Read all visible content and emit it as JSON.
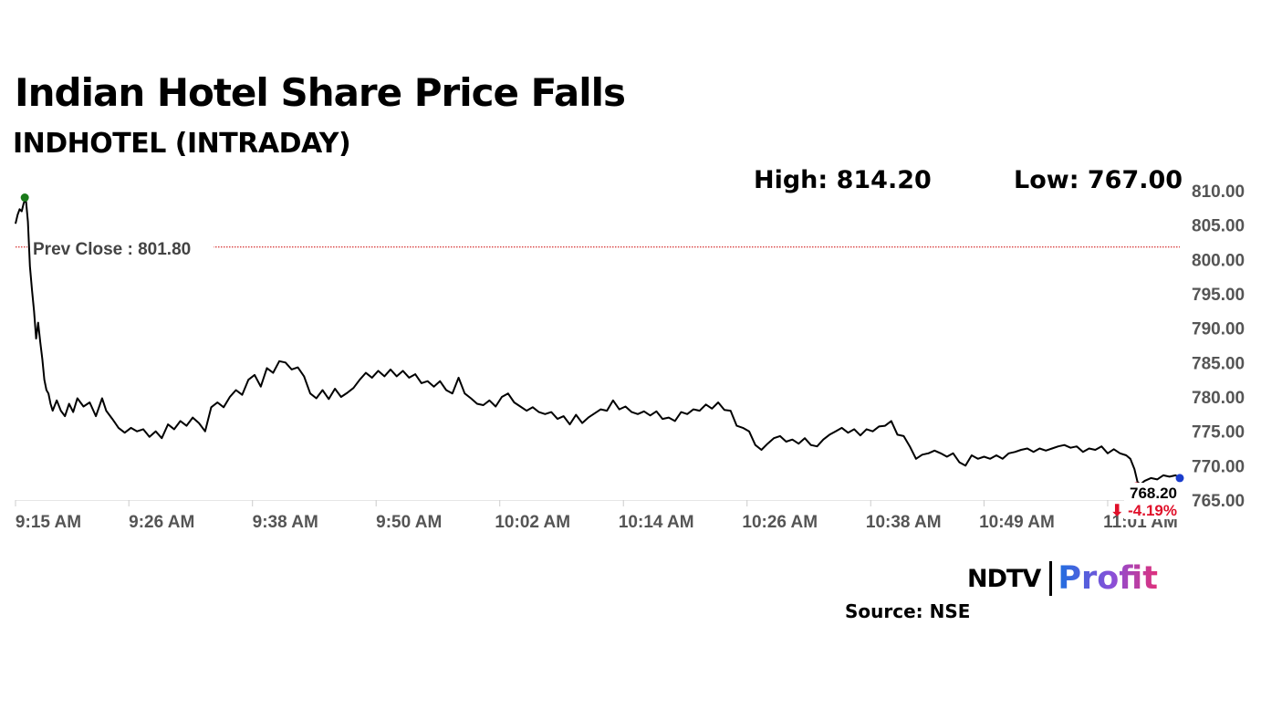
{
  "header": {
    "title": "Indian Hotel Share Price Falls",
    "subtitle": "INDHOTEL (INTRADAY)",
    "high_label": "High: 814.20",
    "low_label": "Low: 767.00"
  },
  "footer": {
    "logo_ndtv": "NDTV",
    "logo_profit": "Profit",
    "source": "Source: NSE"
  },
  "colors": {
    "line": "#000000",
    "prev_close_line": "#cc0000",
    "high_marker": "#1a7a1a",
    "low_marker": "#e0102a",
    "last_marker": "#1a3ccc",
    "change_text": "#e0102a",
    "axis_text": "#555555"
  },
  "chart_data": {
    "type": "line",
    "title": "Indian Hotel Share Price Falls",
    "subtitle": "INDHOTEL (INTRADAY)",
    "xlabel": "",
    "ylabel": "",
    "ylim": [
      765,
      812
    ],
    "xlim_minutes": [
      0,
      113
    ],
    "yticks": [
      "810.00",
      "805.00",
      "800.00",
      "795.00",
      "790.00",
      "785.00",
      "780.00",
      "775.00",
      "770.00",
      "765.00"
    ],
    "ytick_values": [
      810,
      805,
      800,
      795,
      790,
      785,
      780,
      775,
      770,
      765
    ],
    "xticks": [
      "9:15 AM",
      "9:26 AM",
      "9:38 AM",
      "9:50 AM",
      "10:02 AM",
      "10:14 AM",
      "10:26 AM",
      "10:38 AM",
      "10:49 AM",
      "11:01 AM"
    ],
    "xtick_minutes": [
      0,
      11,
      23,
      35,
      47,
      59,
      71,
      83,
      94,
      106
    ],
    "prev_close": {
      "label": "Prev Close : 801.80",
      "value": 801.8
    },
    "high": {
      "minute": 0.9,
      "value": 809.0
    },
    "low_marker": {
      "minute": 108.8,
      "value": 767.0
    },
    "last": {
      "minute": 113,
      "value": 768.2,
      "label": "768.20",
      "change_label": "⬇ -4.19%"
    },
    "grid": false,
    "legend": "none",
    "series": [
      {
        "name": "INDHOTEL",
        "points": [
          [
            0,
            805.2
          ],
          [
            0.2,
            806.5
          ],
          [
            0.4,
            807.3
          ],
          [
            0.6,
            807.0
          ],
          [
            0.8,
            808.2
          ],
          [
            1.0,
            808.8
          ],
          [
            1.2,
            805.5
          ],
          [
            1.4,
            799.0
          ],
          [
            1.6,
            795.5
          ],
          [
            1.8,
            792.5
          ],
          [
            2.0,
            788.5
          ],
          [
            2.2,
            790.8
          ],
          [
            2.4,
            788.0
          ],
          [
            2.6,
            785.5
          ],
          [
            2.8,
            782.5
          ],
          [
            3.0,
            781.0
          ],
          [
            3.2,
            780.5
          ],
          [
            3.4,
            779.0
          ],
          [
            3.6,
            778.0
          ],
          [
            4.0,
            779.5
          ],
          [
            4.4,
            778.0
          ],
          [
            4.8,
            777.2
          ],
          [
            5.2,
            779.0
          ],
          [
            5.6,
            777.8
          ],
          [
            6.0,
            779.8
          ],
          [
            6.6,
            778.6
          ],
          [
            7.2,
            779.2
          ],
          [
            7.8,
            777.2
          ],
          [
            8.4,
            779.8
          ],
          [
            8.8,
            778.0
          ],
          [
            9.4,
            776.8
          ],
          [
            10.0,
            775.5
          ],
          [
            10.6,
            774.8
          ],
          [
            11.2,
            775.5
          ],
          [
            11.8,
            775.0
          ],
          [
            12.4,
            775.3
          ],
          [
            13.0,
            774.2
          ],
          [
            13.6,
            775.0
          ],
          [
            14.2,
            774.0
          ],
          [
            14.8,
            776.0
          ],
          [
            15.4,
            775.3
          ],
          [
            16.0,
            776.5
          ],
          [
            16.6,
            775.8
          ],
          [
            17.2,
            777.0
          ],
          [
            17.8,
            776.2
          ],
          [
            18.4,
            775.0
          ],
          [
            19.0,
            778.5
          ],
          [
            19.6,
            779.2
          ],
          [
            20.2,
            778.5
          ],
          [
            20.8,
            780.0
          ],
          [
            21.4,
            781.0
          ],
          [
            22.0,
            780.3
          ],
          [
            22.6,
            782.5
          ],
          [
            23.2,
            783.2
          ],
          [
            23.8,
            781.5
          ],
          [
            24.4,
            784.2
          ],
          [
            25.0,
            783.5
          ],
          [
            25.6,
            785.2
          ],
          [
            26.2,
            785.0
          ],
          [
            26.8,
            784.0
          ],
          [
            27.4,
            784.3
          ],
          [
            28.0,
            783.0
          ],
          [
            28.6,
            780.5
          ],
          [
            29.2,
            779.8
          ],
          [
            29.8,
            781.0
          ],
          [
            30.4,
            779.7
          ],
          [
            31.0,
            781.2
          ],
          [
            31.6,
            780.0
          ],
          [
            32.2,
            780.6
          ],
          [
            32.8,
            781.3
          ],
          [
            33.4,
            782.5
          ],
          [
            34.0,
            783.5
          ],
          [
            34.6,
            782.8
          ],
          [
            35.2,
            783.8
          ],
          [
            35.8,
            783.0
          ],
          [
            36.4,
            784.0
          ],
          [
            37.0,
            783.0
          ],
          [
            37.6,
            783.8
          ],
          [
            38.2,
            782.8
          ],
          [
            38.8,
            783.3
          ],
          [
            39.4,
            782.0
          ],
          [
            40.0,
            782.3
          ],
          [
            40.6,
            781.5
          ],
          [
            41.2,
            782.3
          ],
          [
            41.8,
            781.0
          ],
          [
            42.4,
            780.5
          ],
          [
            43.0,
            782.8
          ],
          [
            43.6,
            780.5
          ],
          [
            44.2,
            779.8
          ],
          [
            44.8,
            779.0
          ],
          [
            45.4,
            778.8
          ],
          [
            46.0,
            779.5
          ],
          [
            46.6,
            778.6
          ],
          [
            47.2,
            780.0
          ],
          [
            47.8,
            780.5
          ],
          [
            48.4,
            779.2
          ],
          [
            49.0,
            778.6
          ],
          [
            49.6,
            778.0
          ],
          [
            50.2,
            778.5
          ],
          [
            50.8,
            777.8
          ],
          [
            51.4,
            777.5
          ],
          [
            52.0,
            777.8
          ],
          [
            52.6,
            776.8
          ],
          [
            53.2,
            777.2
          ],
          [
            53.8,
            776.0
          ],
          [
            54.4,
            777.4
          ],
          [
            55.0,
            776.2
          ],
          [
            55.6,
            777.0
          ],
          [
            56.2,
            777.6
          ],
          [
            56.8,
            778.2
          ],
          [
            57.4,
            778.0
          ],
          [
            58.0,
            779.5
          ],
          [
            58.6,
            778.2
          ],
          [
            59.2,
            778.6
          ],
          [
            59.8,
            777.8
          ],
          [
            60.4,
            777.5
          ],
          [
            61.0,
            777.9
          ],
          [
            61.6,
            777.3
          ],
          [
            62.2,
            777.9
          ],
          [
            62.8,
            776.8
          ],
          [
            63.4,
            777.0
          ],
          [
            64.0,
            776.5
          ],
          [
            64.6,
            777.8
          ],
          [
            65.2,
            777.5
          ],
          [
            65.8,
            778.2
          ],
          [
            66.4,
            778.0
          ],
          [
            67.0,
            778.9
          ],
          [
            67.6,
            778.3
          ],
          [
            68.2,
            779.2
          ],
          [
            68.8,
            778.1
          ],
          [
            69.4,
            778.0
          ],
          [
            70.0,
            775.8
          ],
          [
            70.6,
            775.5
          ],
          [
            71.2,
            775.0
          ],
          [
            71.8,
            773.0
          ],
          [
            72.4,
            772.3
          ],
          [
            73.0,
            773.2
          ],
          [
            73.6,
            774.0
          ],
          [
            74.2,
            774.3
          ],
          [
            74.8,
            773.5
          ],
          [
            75.4,
            773.8
          ],
          [
            76.0,
            773.2
          ],
          [
            76.6,
            774.0
          ],
          [
            77.2,
            773.0
          ],
          [
            77.8,
            772.8
          ],
          [
            78.4,
            773.8
          ],
          [
            79.0,
            774.5
          ],
          [
            79.6,
            775.0
          ],
          [
            80.2,
            775.5
          ],
          [
            80.8,
            774.8
          ],
          [
            81.4,
            775.3
          ],
          [
            82.0,
            774.4
          ],
          [
            82.6,
            775.3
          ],
          [
            83.2,
            775.0
          ],
          [
            83.8,
            775.7
          ],
          [
            84.4,
            775.8
          ],
          [
            85.0,
            776.5
          ],
          [
            85.6,
            774.5
          ],
          [
            86.2,
            774.3
          ],
          [
            86.8,
            772.8
          ],
          [
            87.4,
            771.0
          ],
          [
            88.0,
            771.6
          ],
          [
            88.6,
            771.8
          ],
          [
            89.2,
            772.2
          ],
          [
            89.8,
            771.8
          ],
          [
            90.4,
            771.3
          ],
          [
            91.0,
            771.8
          ],
          [
            91.6,
            770.5
          ],
          [
            92.2,
            770.0
          ],
          [
            92.8,
            771.5
          ],
          [
            93.4,
            771.0
          ],
          [
            94.0,
            771.3
          ],
          [
            94.6,
            771.0
          ],
          [
            95.2,
            771.5
          ],
          [
            95.8,
            771.0
          ],
          [
            96.4,
            771.8
          ],
          [
            97.0,
            772.0
          ],
          [
            97.6,
            772.3
          ],
          [
            98.2,
            772.5
          ],
          [
            98.8,
            772.0
          ],
          [
            99.4,
            772.5
          ],
          [
            100.0,
            772.2
          ],
          [
            100.6,
            772.5
          ],
          [
            101.2,
            772.8
          ],
          [
            101.8,
            773.0
          ],
          [
            102.4,
            772.6
          ],
          [
            103.0,
            772.8
          ],
          [
            103.6,
            772.0
          ],
          [
            104.2,
            772.5
          ],
          [
            104.8,
            772.3
          ],
          [
            105.4,
            772.8
          ],
          [
            106.0,
            771.8
          ],
          [
            106.6,
            772.4
          ],
          [
            107.2,
            771.8
          ],
          [
            107.8,
            771.5
          ],
          [
            108.2,
            771.0
          ],
          [
            108.6,
            769.5
          ],
          [
            108.9,
            767.6
          ],
          [
            109.2,
            767.3
          ],
          [
            109.6,
            767.8
          ],
          [
            110.2,
            768.2
          ],
          [
            110.8,
            768.0
          ],
          [
            111.4,
            768.6
          ],
          [
            112.0,
            768.4
          ],
          [
            112.6,
            768.6
          ],
          [
            113.0,
            768.2
          ]
        ]
      }
    ]
  }
}
